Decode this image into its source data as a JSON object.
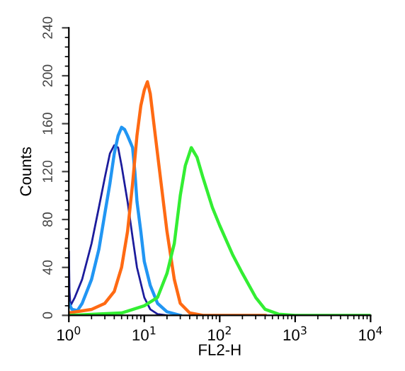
{
  "chart_data": {
    "type": "line",
    "xlabel": "FL2-H",
    "ylabel": "Counts",
    "log": "x",
    "grid": false,
    "marker": "none",
    "line_style": "solid",
    "xlim": [
      1,
      10000
    ],
    "xticks": [
      {
        "value": 1,
        "label": "10$^{0}$"
      },
      {
        "value": 10,
        "label": "10$^{1}$"
      },
      {
        "value": 100,
        "label": "10$^{2}$"
      },
      {
        "value": 1000,
        "label": "10$^{3}$"
      },
      {
        "value": 10000,
        "label": "10$^{4}$"
      }
    ],
    "ylim": [
      0,
      240
    ],
    "yticks": [
      0,
      40,
      80,
      120,
      160,
      200,
      240
    ],
    "series": [
      {
        "color": "#1c1c9c",
        "x": [
          1.0,
          1.02,
          1.05,
          1.2,
          1.5,
          2,
          2.5,
          3,
          3.5,
          4,
          4.5,
          5,
          6,
          7,
          8,
          10,
          12,
          15,
          20
        ],
        "values": [
          53,
          20,
          8,
          15,
          30,
          60,
          90,
          115,
          135,
          142,
          140,
          125,
          95,
          65,
          40,
          15,
          5,
          1,
          0
        ]
      },
      {
        "color": "#2196f3",
        "x": [
          1,
          1.1,
          1.3,
          1.5,
          2,
          2.5,
          3,
          3.5,
          4,
          4.5,
          5,
          5.5,
          6,
          7,
          7.5,
          8,
          9,
          10,
          12,
          15,
          20,
          30
        ],
        "values": [
          10,
          5,
          4,
          10,
          30,
          55,
          85,
          110,
          135,
          150,
          157,
          155,
          150,
          140,
          120,
          95,
          70,
          45,
          25,
          10,
          3,
          0
        ]
      },
      {
        "color": "#ff6a13",
        "x": [
          1,
          2,
          3,
          4,
          5,
          6,
          7,
          8,
          9,
          10,
          11,
          12,
          14,
          16,
          20,
          25,
          30,
          40,
          60,
          100,
          400
        ],
        "values": [
          2,
          5,
          10,
          20,
          40,
          70,
          110,
          150,
          175,
          188,
          195,
          185,
          150,
          120,
          70,
          30,
          10,
          2,
          0,
          0,
          0
        ]
      },
      {
        "color": "#33ee33",
        "x": [
          1,
          5,
          10,
          15,
          20,
          25,
          30,
          35,
          42,
          50,
          60,
          80,
          100,
          150,
          200,
          300,
          400,
          600,
          1000,
          10000
        ],
        "values": [
          0,
          2,
          8,
          15,
          35,
          60,
          100,
          125,
          140,
          132,
          115,
          90,
          75,
          50,
          35,
          15,
          5,
          1,
          0,
          0
        ]
      }
    ]
  }
}
